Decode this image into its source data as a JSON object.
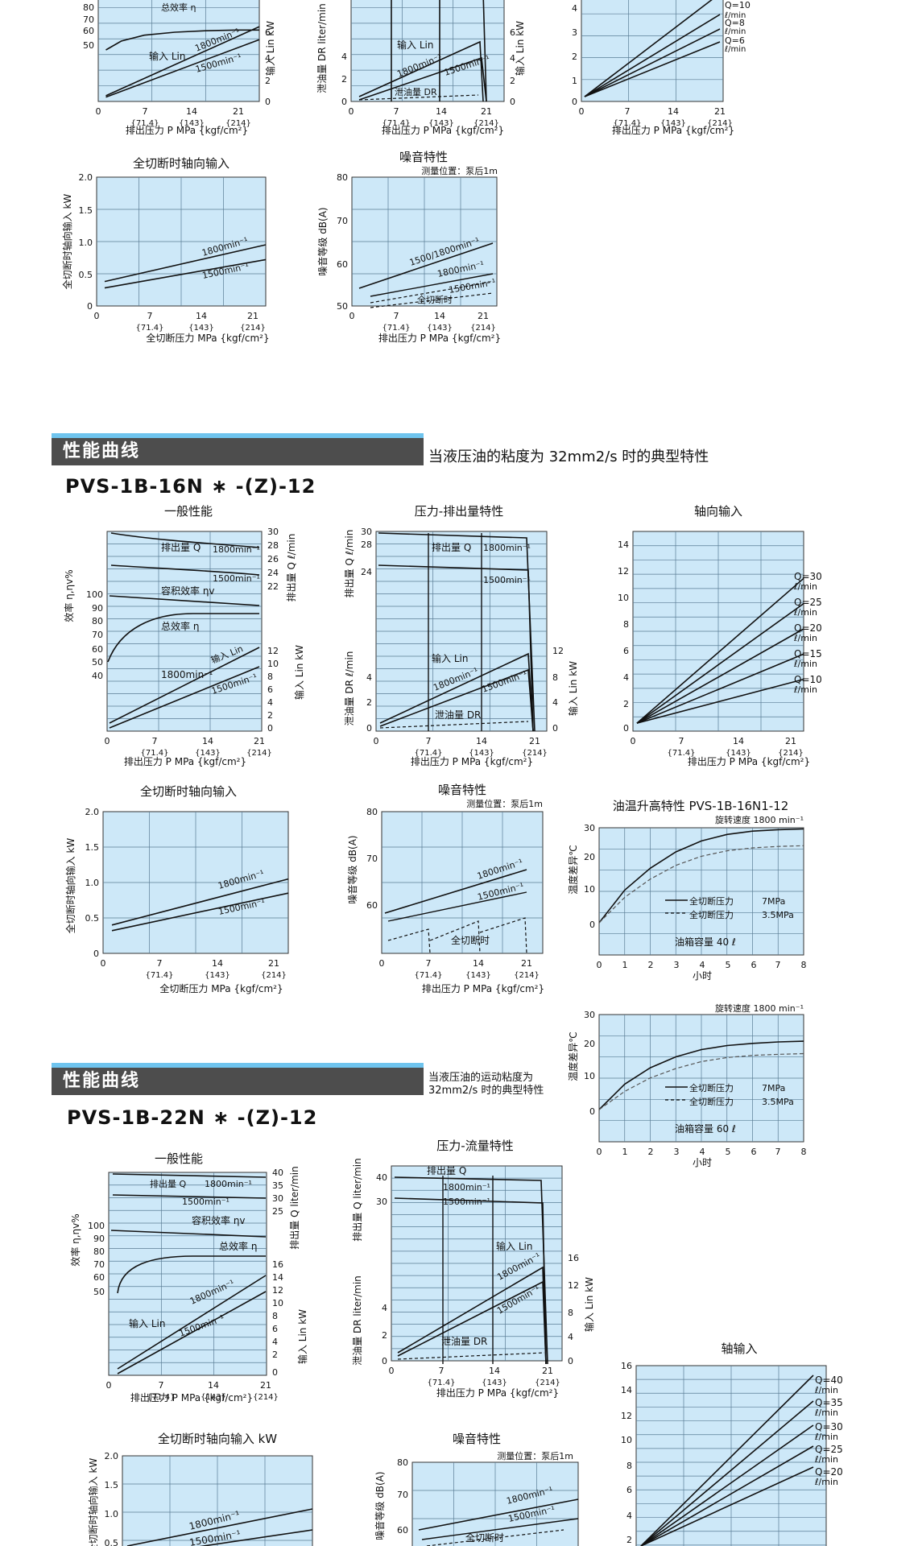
{
  "sections": [
    {
      "title": "性能曲线",
      "note": "当液压油的粘度为 32mm2/s 时的典型特性",
      "model": "PVS-1B-16N ∗ -(Z)-12"
    },
    {
      "title": "性能曲线",
      "note": "当液压油的运动粘度为 32mm2/s 时的典型特性",
      "model": "PVS-1B-22N ∗ -(Z)-12"
    }
  ],
  "chart_data": [
    {
      "id": "top-general",
      "type": "line",
      "title": "",
      "ytick_labels": [
        "80",
        "70",
        "60",
        "50"
      ],
      "ytick_labels_right": [
        "6",
        "4",
        "2",
        "0"
      ],
      "ylabel_right": "输入 Lin kW",
      "xlabel": "排出压力 P MPa {kgf/cm²}",
      "xtick_labels": [
        "0",
        "7",
        "14",
        "21"
      ],
      "xtick_sub": [
        "{71.4}",
        "{143}",
        "{214}"
      ],
      "series": [
        {
          "name": "总效率 η",
          "x": [
            1,
            3,
            6,
            10,
            14,
            18,
            21
          ],
          "y": [
            70,
            76,
            80,
            82,
            83,
            83.5,
            83.5
          ]
        },
        {
          "name": "输入 Lin 1800min⁻¹",
          "x": [
            1,
            21
          ],
          "y": [
            0.4,
            5.2
          ]
        },
        {
          "name": "输入 Lin 1500min⁻¹",
          "x": [
            1,
            21
          ],
          "y": [
            0.3,
            4.3
          ]
        }
      ],
      "labels": [
        "总效率 η",
        "输入 Lin",
        "1800min⁻¹",
        "1500min⁻¹"
      ]
    },
    {
      "id": "top-pressure",
      "type": "line",
      "title": "",
      "ytick_labels": [
        "4",
        "2",
        "0"
      ],
      "ytick_labels_right": [
        "6",
        "4",
        "2",
        "0"
      ],
      "ylabel": "泄油量 DR liter/min",
      "ylabel_right": "输入 Lin kW",
      "xlabel": "排出压力 P MPa {kgf/cm²}",
      "xtick_labels": [
        "0",
        "7",
        "14",
        "21"
      ],
      "xtick_sub": [
        "{71.4}",
        "{143}",
        "{214}"
      ],
      "labels": [
        "输入 Lin",
        "1800min⁻¹",
        "1500min⁻¹",
        "泄油量 DR"
      ]
    },
    {
      "id": "top-axial",
      "type": "line",
      "title": "",
      "ytick_labels": [
        "4",
        "3",
        "2",
        "1",
        "0"
      ],
      "xlabel": "排出压力 P MPa {kgf/cm²}",
      "xtick_labels": [
        "0",
        "7",
        "14",
        "21"
      ],
      "xtick_sub": [
        "{71.4}",
        "{143}",
        "{214}"
      ],
      "labels": [
        "Q=10",
        "ℓ/min",
        "Q=8",
        "ℓ/min",
        "Q=6",
        "ℓ/min"
      ]
    },
    {
      "id": "top-cutoff",
      "type": "line",
      "title": "全切断时轴向输入",
      "ytick_labels": [
        "2.0",
        "1.5",
        "1.0",
        "0.5",
        "0"
      ],
      "ylabel": "全切断时轴向输入 kW",
      "xlabel": "全切断压力 MPa {kgf/cm²}",
      "xtick_labels": [
        "0",
        "7",
        "14",
        "21"
      ],
      "xtick_sub": [
        "{71.4}",
        "{143}",
        "{214}"
      ],
      "series": [
        {
          "name": "1800min⁻¹",
          "x": [
            1,
            21
          ],
          "y": [
            0.38,
            0.95
          ]
        },
        {
          "name": "1500min⁻¹",
          "x": [
            1,
            21
          ],
          "y": [
            0.28,
            0.72
          ]
        }
      ],
      "labels": [
        "1800min⁻¹",
        "1500min⁻¹"
      ]
    },
    {
      "id": "top-noise",
      "type": "line",
      "title": "噪音特性",
      "note": "测量位置：泵后1m",
      "ytick_labels": [
        "80",
        "70",
        "60",
        "50"
      ],
      "ylabel": "噪音等级 dB(A)",
      "xlabel": "排出压力 P MPa {kgf/cm²}",
      "xtick_labels": [
        "0",
        "7",
        "14",
        "21"
      ],
      "xtick_sub": [
        "{71.4}",
        "{143}",
        "{214}"
      ],
      "labels": [
        "1500/1800min⁻¹",
        "1800min⁻¹",
        "1500min⁻¹",
        "全切断时"
      ]
    },
    {
      "id": "s1-general",
      "type": "line",
      "title": "一般性能",
      "ytick_labels": [
        "100",
        "90",
        "80",
        "70",
        "60",
        "50",
        "40"
      ],
      "ylabel": "效率 η,ηv%",
      "ytick_labels_right": [
        "30",
        "28",
        "26",
        "24",
        "22",
        "12",
        "10",
        "8",
        "6",
        "4",
        "2",
        "0"
      ],
      "ylabel_right_top": "排出量 Q ℓ/min",
      "ylabel_right": "输入 Lin kW",
      "xlabel": "排出压力 P MPa {kgf/cm²}",
      "xtick_labels": [
        "0",
        "7",
        "14",
        "21"
      ],
      "xtick_sub": [
        "{71.4}",
        "{143}",
        "{214}"
      ],
      "labels": [
        "排出量 Q",
        "1800min⁻¹",
        "1500min⁻¹",
        "容积效率 ηv",
        "总效率 η",
        "输入 Lin",
        "1800min⁻¹",
        "1500min⁻¹"
      ]
    },
    {
      "id": "s1-pressure",
      "type": "line",
      "title": "压力-排出量特性",
      "ytick_labels": [
        "30",
        "28",
        "24",
        "4",
        "2",
        "0"
      ],
      "ytick_labels_right": [
        "12",
        "8",
        "4",
        "0"
      ],
      "ylabel_top": "排出量 Q ℓ/min",
      "ylabel": "泄油量 DR ℓ/min",
      "ylabel_right": "输入 Lin kW",
      "xlabel": "排出压力 P MPa {kgf/cm²}",
      "xtick_labels": [
        "0",
        "7",
        "14",
        "21"
      ],
      "xtick_sub": [
        "{71.4}",
        "{143}",
        "{214}"
      ],
      "labels": [
        "排出量 Q",
        "1800min⁻¹",
        "1500min⁻¹",
        "输入 Lin",
        "1800min⁻¹",
        "1500min⁻¹",
        "泄油量 DR"
      ]
    },
    {
      "id": "s1-axial",
      "type": "line",
      "title": "轴向输入",
      "ytick_labels": [
        "14",
        "12",
        "10",
        "8",
        "6",
        "4",
        "2",
        "0"
      ],
      "ylabel": "轴向输入 kW",
      "xlabel": "排出压力 P MPa {kgf/cm²}",
      "xtick_labels": [
        "0",
        "7",
        "14",
        "21"
      ],
      "xtick_sub": [
        "{71.4}",
        "{143}",
        "{214}"
      ],
      "series": [
        {
          "name": "Q=30",
          "x": [
            0.5,
            21
          ],
          "y": [
            0.6,
            11.5
          ]
        },
        {
          "name": "Q=25",
          "x": [
            0.5,
            21
          ],
          "y": [
            0.6,
            9.6
          ]
        },
        {
          "name": "Q=20",
          "x": [
            0.5,
            21
          ],
          "y": [
            0.6,
            7.7
          ]
        },
        {
          "name": "Q=15",
          "x": [
            0.5,
            21
          ],
          "y": [
            0.6,
            5.8
          ]
        },
        {
          "name": "Q=10",
          "x": [
            0.5,
            21
          ],
          "y": [
            0.6,
            3.9
          ]
        }
      ],
      "labels": [
        "Q=30",
        "ℓ/min",
        "Q=25",
        "ℓ/min",
        "Q=20",
        "ℓ/min",
        "Q=15",
        "ℓ/min",
        "Q=10",
        "ℓ/min"
      ]
    },
    {
      "id": "s1-cutoff",
      "type": "line",
      "title": "全切断时轴向输入",
      "ytick_labels": [
        "2.0",
        "1.5",
        "1.0",
        "0.5",
        "0"
      ],
      "ylabel": "全切断时轴向输入 kW",
      "xlabel": "全切断压力 MPa {kgf/cm²}",
      "xtick_labels": [
        "0",
        "7",
        "14",
        "21"
      ],
      "xtick_sub": [
        "{71.4}",
        "{143}",
        "{214}"
      ],
      "series": [
        {
          "name": "1800min⁻¹",
          "x": [
            1,
            21
          ],
          "y": [
            0.4,
            1.05
          ]
        },
        {
          "name": "1500min⁻¹",
          "x": [
            1,
            21
          ],
          "y": [
            0.32,
            0.85
          ]
        }
      ],
      "labels": [
        "1800min⁻¹",
        "1500min⁻¹"
      ]
    },
    {
      "id": "s1-noise",
      "type": "line",
      "title": "噪音特性",
      "note": "测量位置：泵后1m",
      "ytick_labels": [
        "80",
        "70",
        "60"
      ],
      "ylabel": "噪音等级 dB(A)",
      "xlabel": "排出压力 P MPa {kgf/cm²}",
      "xtick_labels": [
        "0",
        "7",
        "14",
        "21"
      ],
      "xtick_sub": [
        "{71.4}",
        "{143}",
        "{214}"
      ],
      "labels": [
        "1800min⁻¹",
        "1500min⁻¹",
        "全切断时"
      ]
    },
    {
      "id": "s1-temp1",
      "type": "line",
      "title": "油温升高特性 PVS-1B-16N1-12",
      "note": "旋转速度 1800 min⁻¹",
      "ytick_labels": [
        "30",
        "20",
        "10",
        "0"
      ],
      "ylabel": "温度差异℃",
      "xlabel": "小时",
      "xtick_labels": [
        "0",
        "1",
        "2",
        "3",
        "4",
        "5",
        "6",
        "7",
        "8"
      ],
      "series": [
        {
          "name": "全切断压力 7MPa",
          "x": [
            0,
            1,
            2,
            3,
            4,
            5,
            6,
            7,
            8
          ],
          "y": [
            0,
            9,
            15,
            19.5,
            22.5,
            24.3,
            25.2,
            25.6,
            25.8
          ]
        },
        {
          "name": "全切断压力 3.5MPa",
          "x": [
            0,
            1,
            2,
            3,
            4,
            5,
            6,
            7,
            8
          ],
          "y": [
            0,
            7,
            12,
            15.8,
            18.3,
            19.8,
            20.6,
            21,
            21.2
          ]
        }
      ],
      "labels": [
        "全切断压力",
        "7MPa",
        "全切断压力",
        "3.5MPa",
        "油箱容量 40 ℓ"
      ]
    },
    {
      "id": "s1-temp2",
      "type": "line",
      "title": "",
      "note": "旋转速度 1800 min⁻¹",
      "ytick_labels": [
        "30",
        "20",
        "10",
        "0"
      ],
      "ylabel": "温度差异℃",
      "xlabel": "小时",
      "xtick_labels": [
        "0",
        "1",
        "2",
        "3",
        "4",
        "5",
        "6",
        "7",
        "8"
      ],
      "series": [
        {
          "name": "全切断压力 7MPa",
          "x": [
            0,
            1,
            2,
            3,
            4,
            5,
            6,
            7,
            8
          ],
          "y": [
            0,
            7,
            11.5,
            14.5,
            16.5,
            17.6,
            18.2,
            18.6,
            18.8
          ]
        },
        {
          "name": "全切断压力 3.5MPa",
          "x": [
            0,
            1,
            2,
            3,
            4,
            5,
            6,
            7,
            8
          ],
          "y": [
            0,
            5,
            8.7,
            11.3,
            13.2,
            14.3,
            14.9,
            15.2,
            15.4
          ]
        }
      ],
      "labels": [
        "全切断压力",
        "7MPa",
        "全切断压力",
        "3.5MPa",
        "油箱容量 60 ℓ"
      ]
    },
    {
      "id": "s2-general",
      "type": "line",
      "title": "一般性能",
      "ytick_labels": [
        "100",
        "90",
        "80",
        "70",
        "60",
        "50"
      ],
      "ylabel": "效率 η,ηv%",
      "ytick_labels_right": [
        "40",
        "35",
        "30",
        "25",
        "16",
        "14",
        "12",
        "10",
        "8",
        "6",
        "4",
        "2",
        "0"
      ],
      "ylabel_right_top": "排出量 Q liter/min",
      "ylabel_right": "输入 Lin kW",
      "xlabel": "排出压力 P MPa {kgf/cm²}",
      "xtick_labels": [
        "0",
        "7",
        "14",
        "21"
      ],
      "xtick_sub": [
        "{71.4}",
        "{143}",
        "{214}"
      ],
      "labels": [
        "排出量 Q",
        "1800min⁻¹",
        "1500min⁻¹",
        "容积效率 ηv",
        "总效率 η",
        "1800min⁻¹",
        "输入 Lin",
        "1500min⁻¹"
      ]
    },
    {
      "id": "s2-pressure",
      "type": "line",
      "title": "压力-流量特性",
      "ytick_labels": [
        "40",
        "30",
        "4",
        "2",
        "0"
      ],
      "ytick_labels_right": [
        "16",
        "12",
        "8",
        "4",
        "0"
      ],
      "ylabel_top": "排出量 Q liter/min",
      "ylabel": "泄油量 DR liter/min",
      "ylabel_right": "输入 Lin kW",
      "xlabel": "排出压力 P MPa {kgf/cm²}",
      "xtick_labels": [
        "0",
        "7",
        "14",
        "21"
      ],
      "xtick_sub": [
        "{71.4}",
        "{143}",
        "{214}"
      ],
      "labels": [
        "排出量 Q",
        "1800min⁻¹",
        "1500min⁻¹",
        "输入 Lin",
        "1800min⁻¹",
        "1500min⁻¹",
        "泄油量 DR"
      ]
    },
    {
      "id": "s2-axial",
      "type": "line",
      "title": "轴输入",
      "ytick_labels": [
        "16",
        "14",
        "12",
        "10",
        "8",
        "6",
        "4",
        "2"
      ],
      "ylabel": "轴输入 kW",
      "labels": [
        "Q=40",
        "ℓ/min",
        "Q=35",
        "ℓ/min",
        "Q=30",
        "ℓ/min",
        "Q=25",
        "ℓ/min",
        "Q=20",
        "ℓ/min"
      ]
    },
    {
      "id": "s2-cutoff",
      "type": "line",
      "title": "全切断时轴向输入 kW",
      "ytick_labels": [
        "2.0",
        "1.5",
        "1.0",
        "0.5"
      ],
      "ylabel": "全切断时轴向输入 kW",
      "labels": [
        "1800min⁻¹",
        "1500min⁻¹"
      ]
    },
    {
      "id": "s2-noise",
      "type": "line",
      "title": "噪音特性",
      "note": "测量位置：泵后1m",
      "ytick_labels": [
        "80",
        "70",
        "60"
      ],
      "ylabel": "噪音等级 dB(A)",
      "labels": [
        "1800min⁻¹",
        "1500min⁻¹",
        "全切断时"
      ]
    }
  ],
  "colors": {
    "plot_bg": "#cde8f8",
    "grid": "#5a7d95",
    "line": "#111111",
    "section_bar": "#4d4d4d",
    "section_accent": "#6fc4ee"
  }
}
